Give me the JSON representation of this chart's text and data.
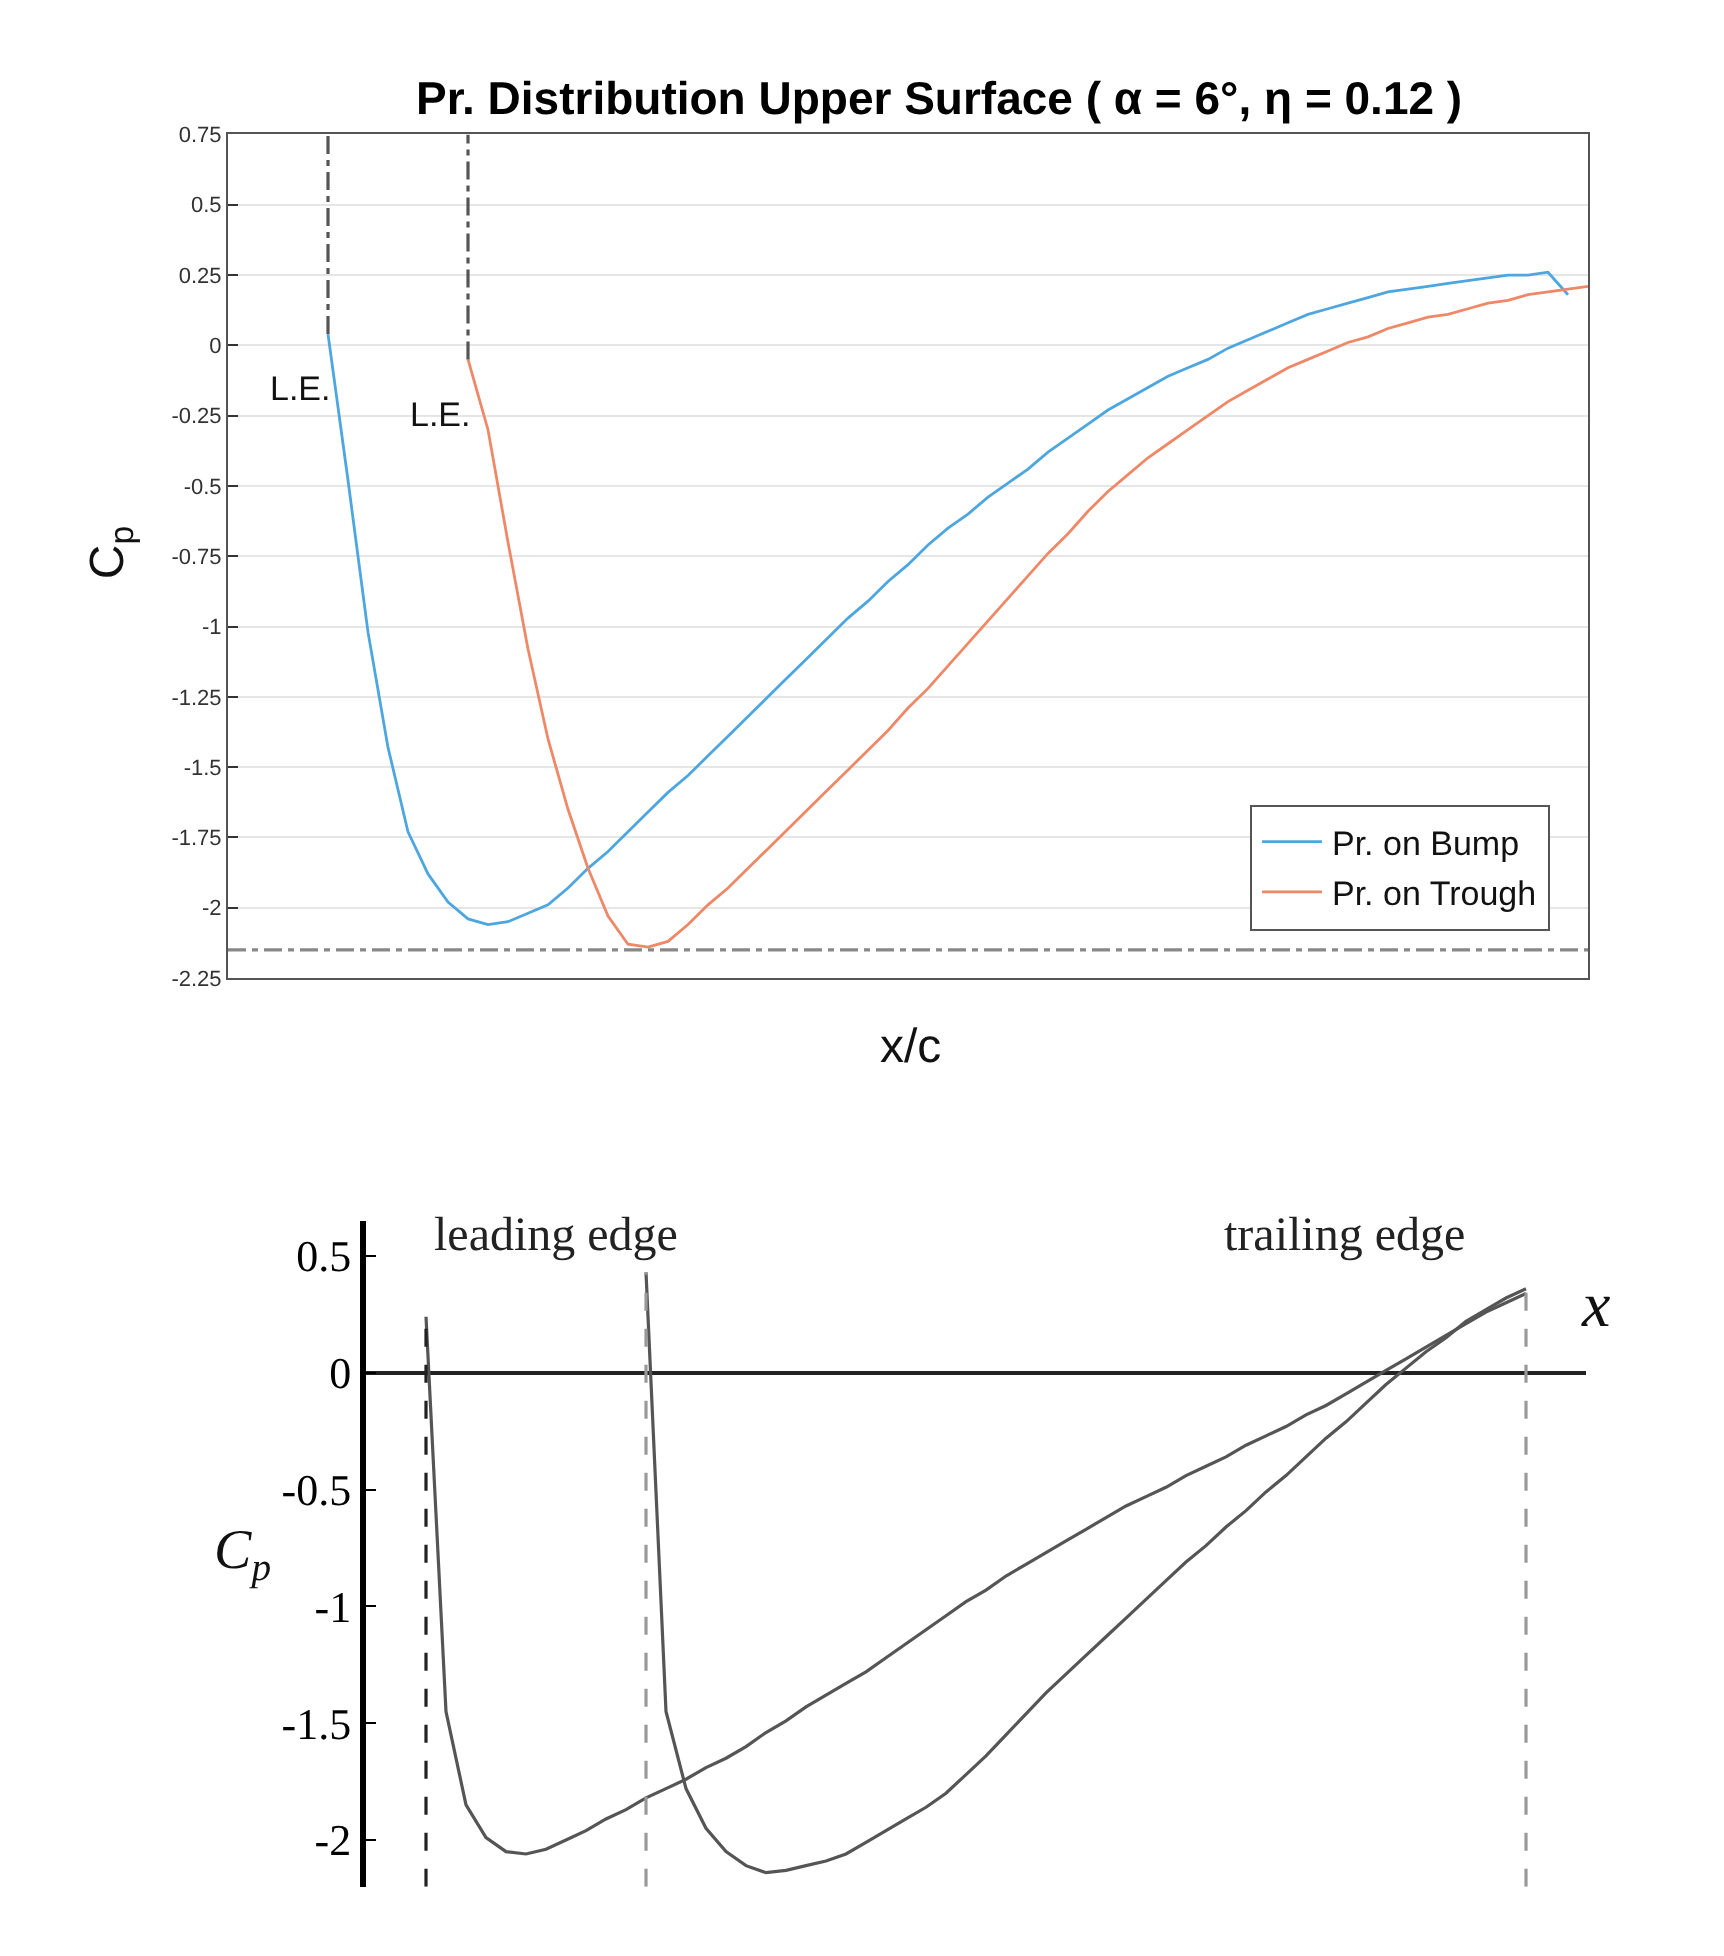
{
  "chart_data": [
    {
      "type": "line",
      "title": "Pr. Distribution Upper Surface ( α = 6°, η = 0.12 )",
      "xlabel": "x/c",
      "ylabel": "C$_{p}$",
      "categories": [
        null,
        null,
        null,
        null,
        null,
        null,
        null,
        null,
        null,
        null,
        null,
        null,
        null,
        null,
        null,
        null,
        null,
        null,
        null,
        null,
        null,
        null,
        null,
        null,
        null,
        null,
        null,
        null,
        null,
        null,
        null,
        null,
        null,
        null,
        null,
        null,
        null,
        null,
        null,
        null,
        null,
        null,
        null,
        null,
        null,
        null,
        null,
        null,
        null,
        null,
        null,
        null,
        null,
        null,
        null,
        null,
        null,
        null,
        null,
        null,
        null,
        null,
        null,
        null,
        null,
        null,
        null,
        null,
        null
      ],
      "series": [
        {
          "name": "Pr. on Bump",
          "color": "#4da6df",
          "values": [
            null,
            null,
            null,
            null,
            null,
            0.04,
            -0.48,
            -1.02,
            -1.43,
            -1.73,
            -1.88,
            -1.98,
            -2.04,
            -2.06,
            -2.05,
            -2.02,
            -1.99,
            -1.93,
            -1.86,
            -1.8,
            -1.73,
            -1.66,
            -1.59,
            -1.53,
            -1.46,
            -1.39,
            -1.32,
            -1.25,
            -1.18,
            -1.11,
            -1.04,
            -0.97,
            -0.91,
            -0.84,
            -0.78,
            -0.71,
            -0.65,
            -0.6,
            -0.54,
            -0.49,
            -0.44,
            -0.38,
            -0.33,
            -0.28,
            -0.23,
            -0.19,
            -0.15,
            -0.11,
            -0.08,
            -0.05,
            -0.01,
            0.02,
            0.05,
            0.08,
            0.11,
            0.13,
            0.15,
            0.17,
            0.19,
            0.2,
            0.21,
            0.22,
            0.23,
            0.24,
            0.25,
            0.25,
            0.26,
            0.18,
            null
          ]
        },
        {
          "name": "Pr. on Trough",
          "color": "#ee8866",
          "values": [
            null,
            null,
            null,
            null,
            null,
            null,
            null,
            null,
            null,
            null,
            null,
            null,
            -0.05,
            -0.3,
            -0.7,
            -1.08,
            -1.4,
            -1.65,
            -1.86,
            -2.03,
            -2.13,
            -2.14,
            -2.12,
            -2.06,
            -1.99,
            -1.93,
            -1.86,
            -1.79,
            -1.72,
            -1.65,
            -1.58,
            -1.51,
            -1.44,
            -1.37,
            -1.29,
            -1.22,
            -1.14,
            -1.06,
            -0.98,
            -0.9,
            -0.82,
            -0.74,
            -0.67,
            -0.59,
            -0.52,
            -0.46,
            -0.4,
            -0.35,
            -0.3,
            -0.25,
            -0.2,
            -0.16,
            -0.12,
            -0.08,
            -0.05,
            -0.02,
            0.01,
            0.03,
            0.06,
            0.08,
            0.1,
            0.11,
            0.13,
            0.15,
            0.16,
            0.18,
            0.19,
            0.2,
            0.21
          ]
        }
      ],
      "ylim": [
        -2.25,
        0.75
      ],
      "yticks": [
        0.75,
        0.5,
        0.25,
        0,
        -0.25,
        -0.5,
        -0.75,
        -1,
        -1.25,
        -1.5,
        -1.75,
        -2,
        -2.25
      ],
      "grid": "y",
      "legend": "bottom right",
      "tick_labels": "y",
      "annotations": [
        "L.E.",
        "L.E."
      ],
      "ref_lines": [
        {
          "axis": "y",
          "value": -2.15,
          "color": "#888888",
          "line_style": "dotted"
        }
      ]
    },
    {
      "type": "line",
      "xlabel": "x",
      "ylabel": "C$_{p}$",
      "categories": [
        null,
        null,
        null,
        null,
        null,
        null,
        null,
        null,
        null,
        null,
        null,
        null,
        null,
        null,
        null,
        null,
        null,
        null,
        null,
        null,
        null,
        null,
        null,
        null,
        null,
        null,
        null,
        null,
        null,
        null,
        null,
        null,
        null,
        null,
        null,
        null,
        null,
        null,
        null,
        null,
        null,
        null,
        null,
        null,
        null,
        null,
        null,
        null,
        null,
        null,
        null,
        null,
        null,
        null,
        null,
        null,
        null,
        null,
        null,
        null,
        null,
        null
      ],
      "series": [
        {
          "color": "#555555",
          "values": [
            null,
            null,
            null,
            0.24,
            -1.45,
            -1.85,
            -1.99,
            -2.05,
            -2.06,
            -2.04,
            -2.0,
            -1.96,
            -1.91,
            -1.87,
            -1.82,
            -1.78,
            -1.74,
            -1.69,
            -1.65,
            -1.6,
            -1.54,
            -1.49,
            -1.43,
            -1.38,
            -1.33,
            -1.28,
            -1.22,
            -1.16,
            -1.1,
            -1.04,
            -0.98,
            -0.93,
            -0.87,
            -0.82,
            -0.77,
            -0.72,
            -0.67,
            -0.62,
            -0.57,
            -0.53,
            -0.49,
            -0.44,
            -0.4,
            -0.36,
            -0.31,
            -0.27,
            -0.23,
            -0.18,
            -0.14,
            -0.09,
            -0.04,
            0.01,
            0.06,
            0.11,
            0.16,
            0.21,
            0.26,
            0.3,
            0.34,
            null,
            null,
            null
          ]
        },
        {
          "color": "#555555",
          "values": [
            null,
            null,
            null,
            null,
            null,
            null,
            null,
            null,
            null,
            null,
            null,
            null,
            null,
            null,
            0.43,
            -1.45,
            -1.78,
            -1.95,
            -2.05,
            -2.11,
            -2.14,
            -2.13,
            -2.11,
            -2.09,
            -2.06,
            -2.01,
            -1.96,
            -1.91,
            -1.86,
            -1.8,
            -1.72,
            -1.64,
            -1.55,
            -1.46,
            -1.37,
            -1.29,
            -1.21,
            -1.13,
            -1.05,
            -0.97,
            -0.89,
            -0.81,
            -0.74,
            -0.66,
            -0.59,
            -0.51,
            -0.44,
            -0.36,
            -0.28,
            -0.21,
            -0.13,
            -0.05,
            0.02,
            0.09,
            0.15,
            0.22,
            0.27,
            0.32,
            0.36,
            null,
            null,
            null
          ]
        }
      ],
      "ylim": [
        -2.2,
        0.65
      ],
      "yticks": [
        0.5,
        0,
        -0.5,
        -1,
        -1.5,
        -2
      ],
      "tick_labels": "y",
      "annotations": [
        "leading edge",
        "trailing edge"
      ]
    }
  ]
}
